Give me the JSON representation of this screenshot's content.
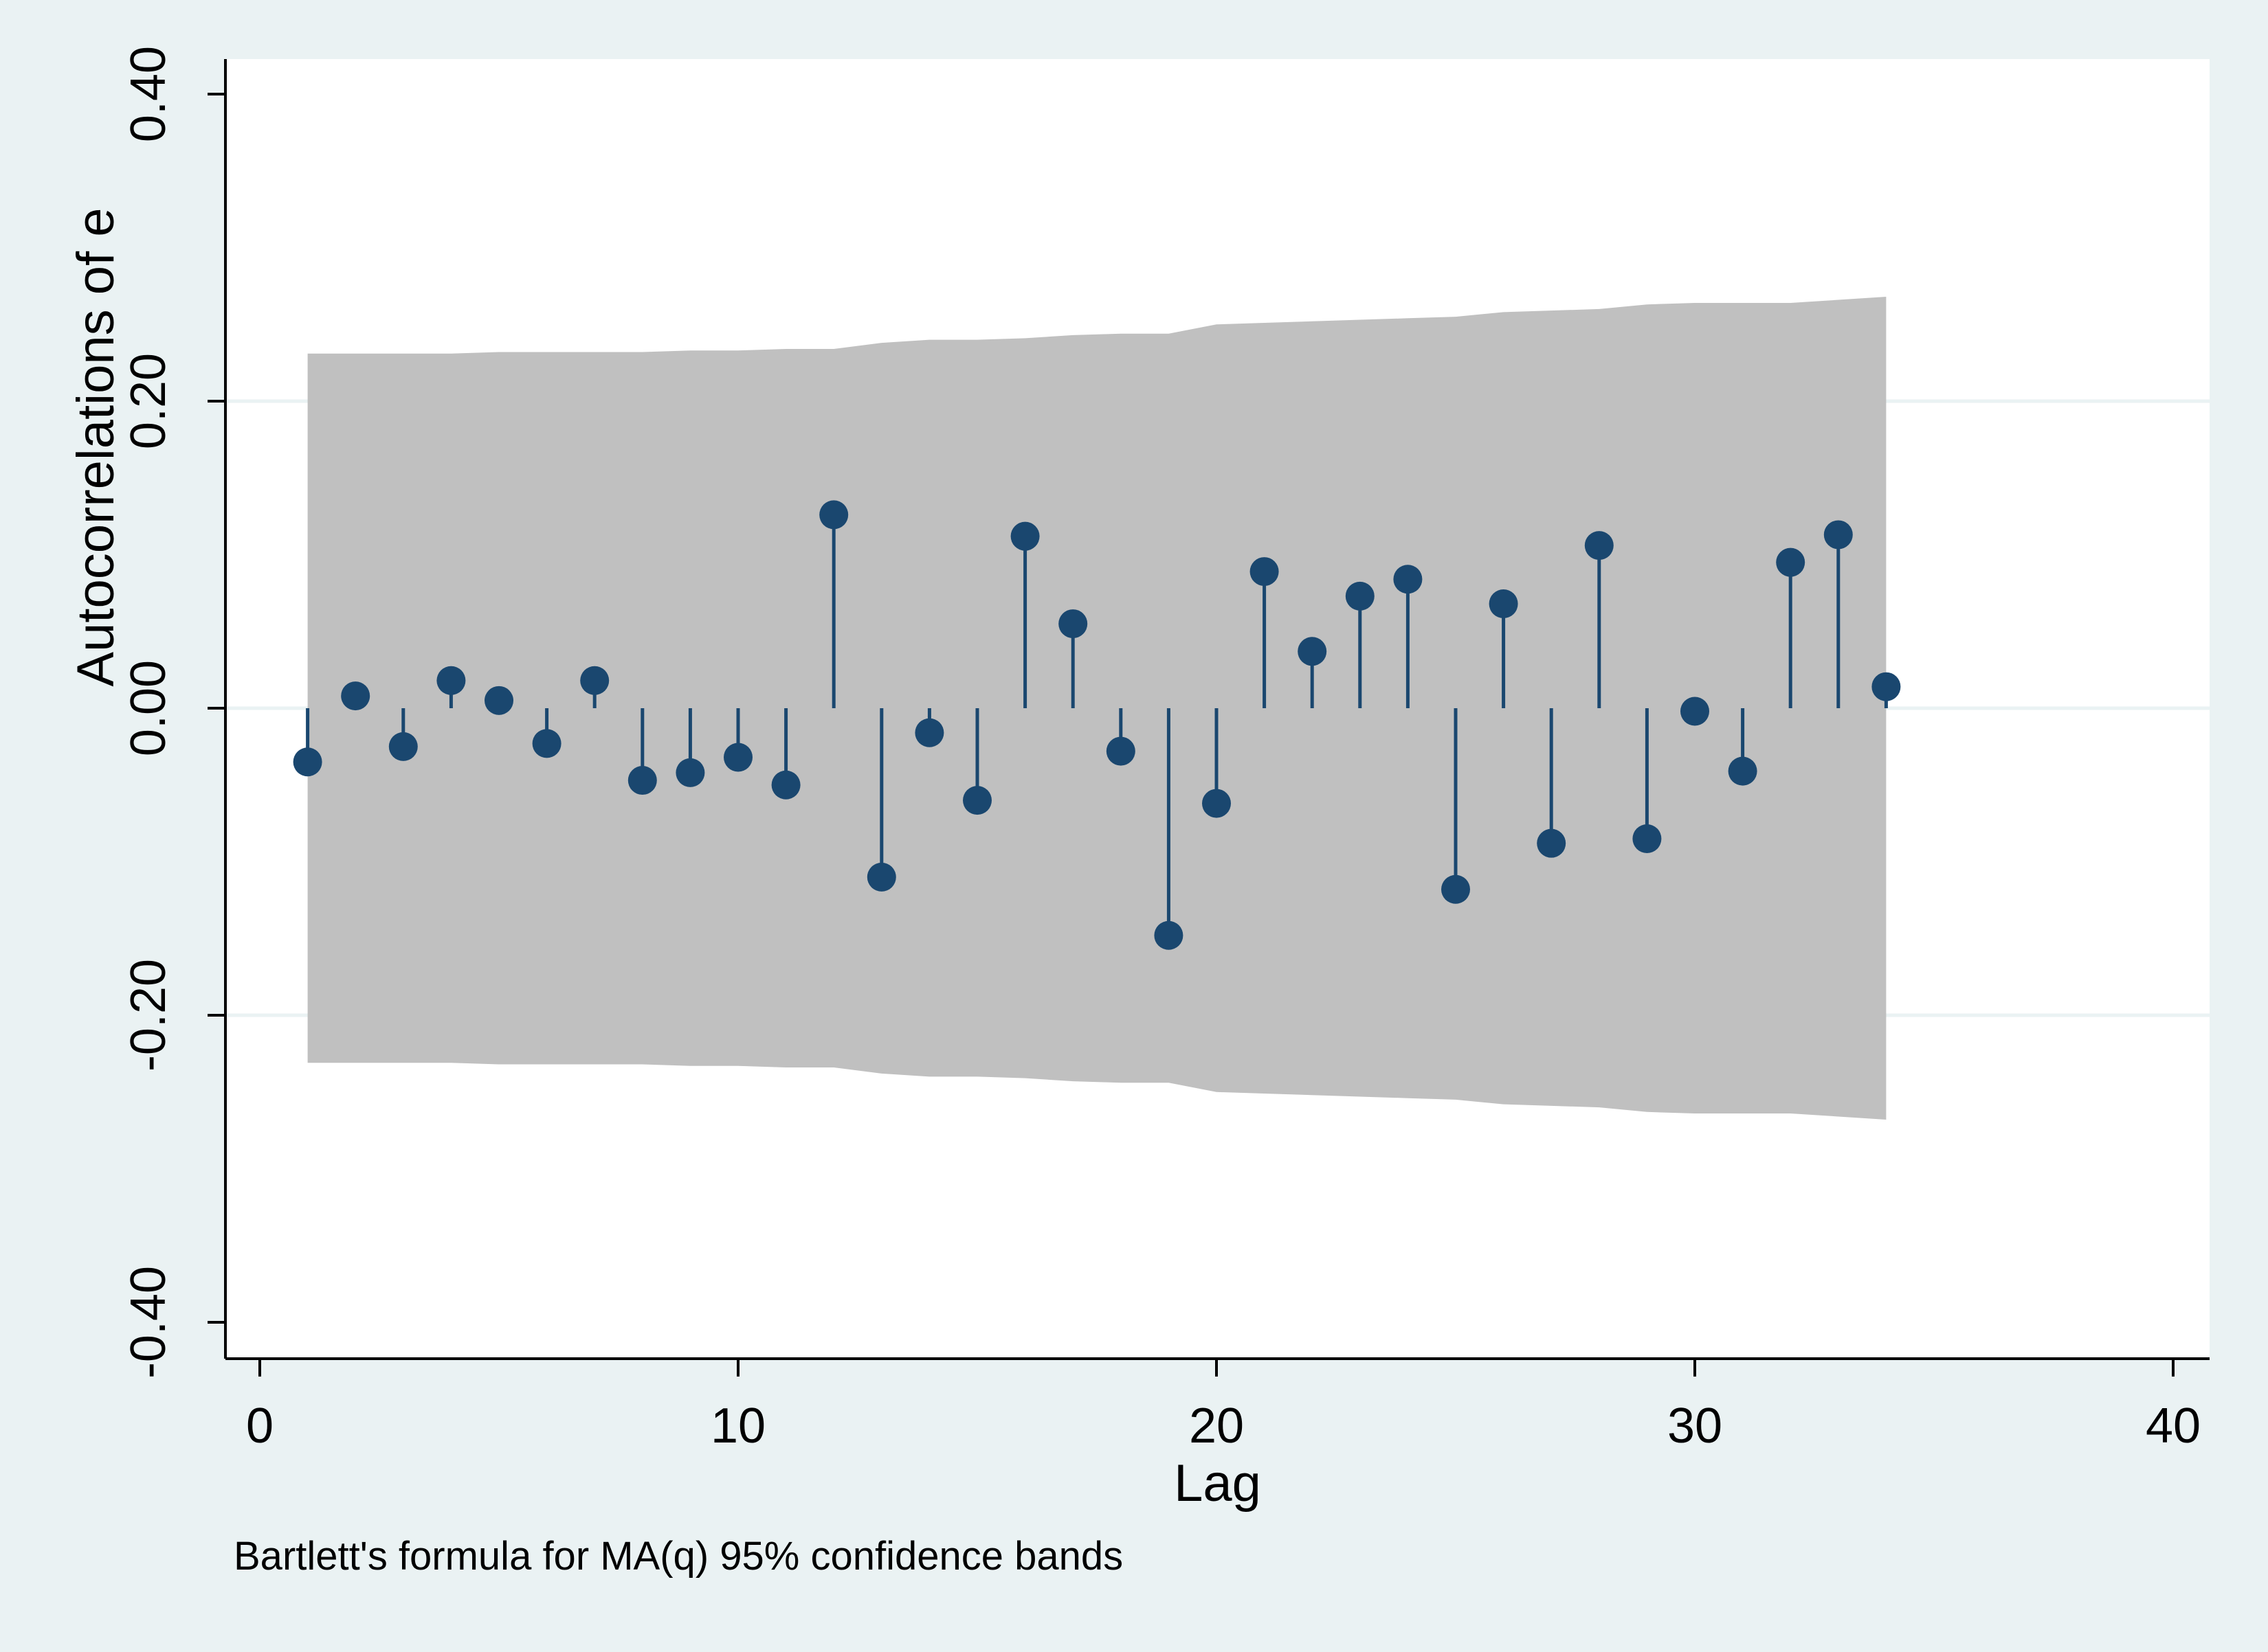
{
  "chart_data": {
    "type": "scatter",
    "xlabel": "Lag",
    "ylabel": "Autocorrelations of e",
    "note": "Bartlett's formula for MA(q) 95% confidence bands",
    "xlim": [
      0,
      40
    ],
    "ylim": [
      -0.4,
      0.4
    ],
    "x_ticks": [
      0,
      10,
      20,
      30,
      40
    ],
    "x_tick_labels": [
      "0",
      "10",
      "20",
      "30",
      "40"
    ],
    "y_ticks": [
      -0.4,
      -0.2,
      0.0,
      0.2,
      0.4
    ],
    "y_tick_labels": [
      "-0.40",
      "-0.20",
      "0.00",
      "0.20",
      "0.40"
    ],
    "grid": true,
    "marker_style": "spike",
    "series": [
      {
        "x": [
          1,
          2,
          3,
          4,
          5,
          6,
          7,
          8,
          9,
          10,
          11,
          12,
          13,
          14,
          15,
          16,
          17,
          18,
          19,
          20,
          21,
          22,
          23,
          24,
          25,
          26,
          27,
          28,
          29,
          30,
          31,
          32,
          33,
          34
        ],
        "values": [
          -0.035,
          0.008,
          -0.025,
          0.018,
          0.005,
          -0.023,
          0.018,
          -0.047,
          -0.042,
          -0.032,
          -0.05,
          0.126,
          -0.11,
          -0.016,
          -0.06,
          0.112,
          0.055,
          -0.028,
          -0.148,
          -0.062,
          0.089,
          0.037,
          0.073,
          0.084,
          -0.118,
          0.068,
          -0.088,
          0.106,
          -0.085,
          -0.002,
          -0.041,
          0.095,
          0.113,
          0.014
        ]
      }
    ],
    "confidence_band": {
      "label": "Bartlett's formula for MA(q) 95% confidence bands",
      "x": [
        1,
        2,
        3,
        4,
        5,
        6,
        7,
        8,
        9,
        10,
        11,
        12,
        13,
        14,
        15,
        16,
        17,
        18,
        19,
        20,
        21,
        22,
        23,
        24,
        25,
        26,
        27,
        28,
        29,
        30,
        31,
        32,
        33,
        34
      ],
      "upper": [
        0.231,
        0.231,
        0.231,
        0.231,
        0.232,
        0.232,
        0.232,
        0.232,
        0.233,
        0.233,
        0.234,
        0.234,
        0.238,
        0.24,
        0.24,
        0.241,
        0.243,
        0.244,
        0.244,
        0.25,
        0.251,
        0.252,
        0.253,
        0.254,
        0.255,
        0.258,
        0.259,
        0.26,
        0.263,
        0.264,
        0.264,
        0.264,
        0.266,
        0.268
      ],
      "lower": [
        -0.231,
        -0.231,
        -0.231,
        -0.231,
        -0.232,
        -0.232,
        -0.232,
        -0.232,
        -0.233,
        -0.233,
        -0.234,
        -0.234,
        -0.238,
        -0.24,
        -0.24,
        -0.241,
        -0.243,
        -0.244,
        -0.244,
        -0.25,
        -0.251,
        -0.252,
        -0.253,
        -0.254,
        -0.255,
        -0.258,
        -0.259,
        -0.26,
        -0.263,
        -0.264,
        -0.264,
        -0.264,
        -0.266,
        -0.268
      ]
    },
    "colors": {
      "background": "#eaf2f3",
      "plot_background": "#ffffff",
      "band": "#c0c0c0",
      "marker": "#1a476f",
      "gridline": "#eaf2f3",
      "axis": "#000000"
    }
  }
}
